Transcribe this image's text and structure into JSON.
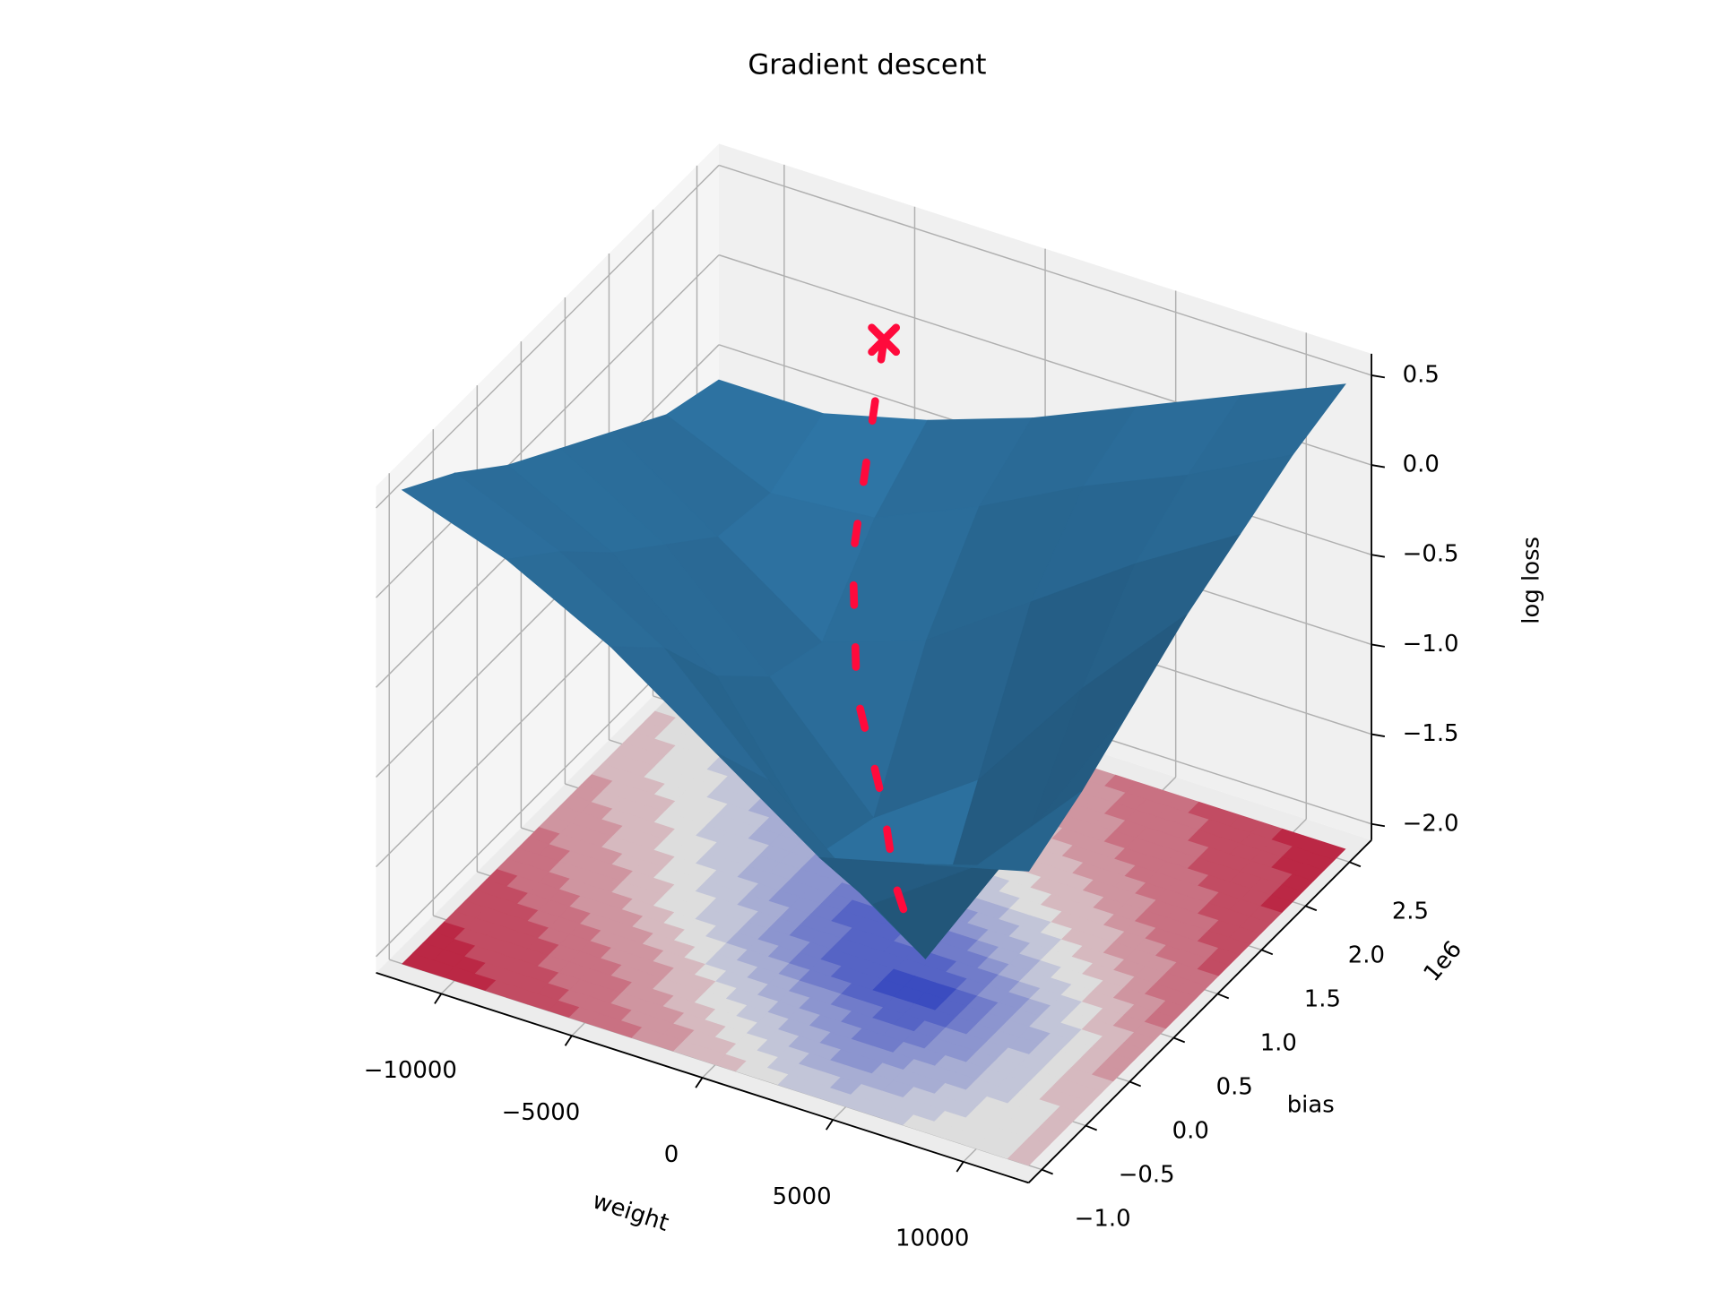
{
  "chart_data": {
    "type": "surface3d",
    "title": "Gradient descent",
    "xlabel": "weight",
    "ylabel": "bias",
    "zlabel": "log loss",
    "y_offset_label": "1e6",
    "xlim": [
      -12500,
      12500
    ],
    "ylim": [
      -1.15,
      2.75
    ],
    "zlim": [
      -2.09,
      0.62
    ],
    "xticks": [
      {
        "value": -10000,
        "label": "−10000"
      },
      {
        "value": -5000,
        "label": "−5000"
      },
      0,
      5000,
      10000
    ],
    "yticks": [
      {
        "value": -1.0,
        "label": "−1.0"
      },
      {
        "value": -0.5,
        "label": "−0.5"
      },
      {
        "value": 0.0,
        "label": "0.0"
      },
      0.5,
      {
        "value": 1.0,
        "label": "1.0"
      },
      1.5,
      {
        "value": 2.0,
        "label": "2.0"
      },
      2.5
    ],
    "zticks": [
      {
        "value": -2.0,
        "label": "−2.0"
      },
      {
        "value": -1.5,
        "label": "−1.5"
      },
      {
        "value": -1.0,
        "label": "−1.0"
      },
      {
        "value": -0.5,
        "label": "−0.5"
      },
      {
        "value": 0.0,
        "label": "0.0"
      },
      0.5
    ],
    "grid": true,
    "surface": {
      "color": "#2a6a96",
      "x": [
        -12000,
        -8000,
        -4000,
        0,
        4000,
        8000,
        12000
      ],
      "y": [
        -1.0,
        -0.4,
        0.2,
        0.8,
        1.4,
        2.0,
        2.6
      ],
      "z": [
        [
          0.55,
          0.35,
          0.05,
          -0.35,
          -0.75,
          -0.6,
          -0.45
        ],
        [
          0.35,
          0.1,
          -0.25,
          -0.8,
          -1.3,
          -0.9,
          -0.3
        ],
        [
          0.1,
          -0.2,
          -0.7,
          -1.5,
          -1.9,
          -1.0,
          -0.1
        ],
        [
          -0.1,
          -0.45,
          -1.0,
          -1.6,
          -1.2,
          -0.5,
          0.1
        ],
        [
          -0.3,
          -0.7,
          -1.1,
          -0.9,
          -0.5,
          -0.1,
          0.25
        ],
        [
          -0.5,
          -0.75,
          -0.7,
          -0.45,
          -0.15,
          0.1,
          0.4
        ],
        [
          -0.6,
          -0.6,
          -0.45,
          -0.25,
          0.0,
          0.25,
          0.5
        ]
      ]
    },
    "contour": {
      "cmap": "coolwarm"
    },
    "path": {
      "color": "#ff0a3c",
      "x": [
        -5000,
        -4500,
        -3500,
        -2000,
        0,
        1500,
        3000
      ],
      "y": [
        2.4,
        2.1,
        1.6,
        1.2,
        0.9,
        0.6,
        0.35
      ],
      "z": [
        0.05,
        -0.3,
        -0.7,
        -1.2,
        -1.55,
        -1.8,
        -1.9
      ]
    }
  }
}
